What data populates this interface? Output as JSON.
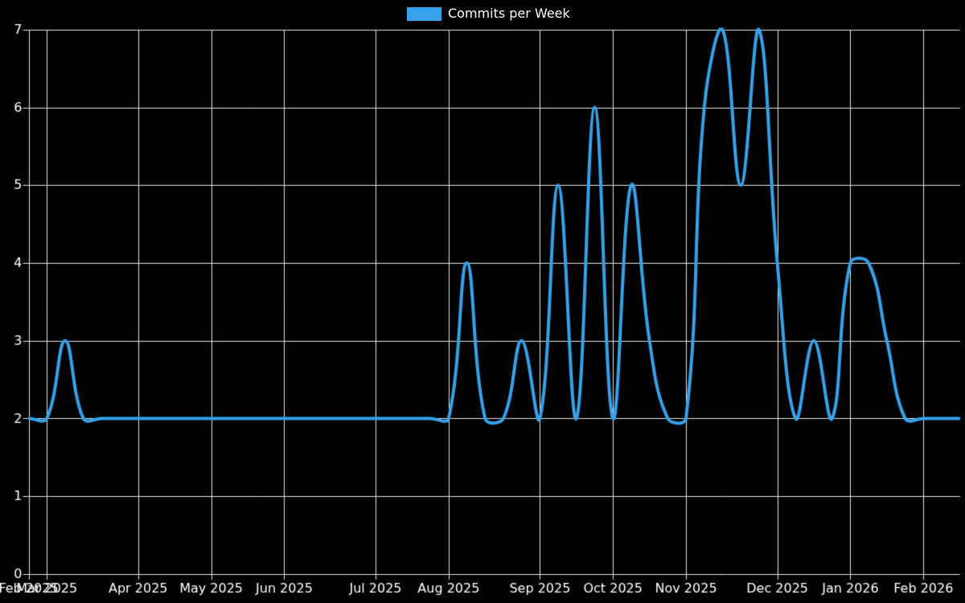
{
  "legend": {
    "label": "Commits per Week"
  },
  "colors": {
    "background": "#000000",
    "line": "#36a2eb",
    "grid": "#e8e8e8",
    "axis_text": "#ffffff"
  },
  "chart_data": {
    "type": "line",
    "title": "Commits per Week",
    "xlabel": "",
    "ylabel": "",
    "ylim": [
      0,
      7
    ],
    "y_ticks": [
      "0",
      "1",
      "2",
      "3",
      "4",
      "5",
      "6",
      "7"
    ],
    "grid": true,
    "legend_position": "top-center",
    "n_points": 52,
    "x_month_ticks": [
      {
        "label": "Feb 2025",
        "week_index": 0
      },
      {
        "label": "Mar 2025",
        "week_index": 1
      },
      {
        "label": "Apr 2025",
        "week_index": 6
      },
      {
        "label": "May 2025",
        "week_index": 10
      },
      {
        "label": "Jun 2025",
        "week_index": 14
      },
      {
        "label": "Jul 2025",
        "week_index": 19
      },
      {
        "label": "Aug 2025",
        "week_index": 23
      },
      {
        "label": "Sep 2025",
        "week_index": 28
      },
      {
        "label": "Oct 2025",
        "week_index": 32
      },
      {
        "label": "Nov 2025",
        "week_index": 36
      },
      {
        "label": "Dec 2025",
        "week_index": 41
      },
      {
        "label": "Jan 2026",
        "week_index": 45
      },
      {
        "label": "Feb 2026",
        "week_index": 49
      }
    ],
    "series": [
      {
        "name": "Commits per Week",
        "color": "#36a2eb",
        "values": [
          2,
          2,
          3,
          2,
          2,
          2,
          2,
          2,
          2,
          2,
          2,
          2,
          2,
          2,
          2,
          2,
          2,
          2,
          2,
          2,
          2,
          2,
          2,
          2,
          4,
          2,
          2,
          3,
          2,
          5,
          2,
          6,
          2,
          5,
          3,
          2,
          2,
          6,
          7,
          5,
          7,
          4,
          2,
          3,
          2,
          4,
          4,
          3,
          2,
          2,
          2,
          2
        ]
      }
    ],
    "line_tension": 0.4,
    "line_width": 4
  }
}
